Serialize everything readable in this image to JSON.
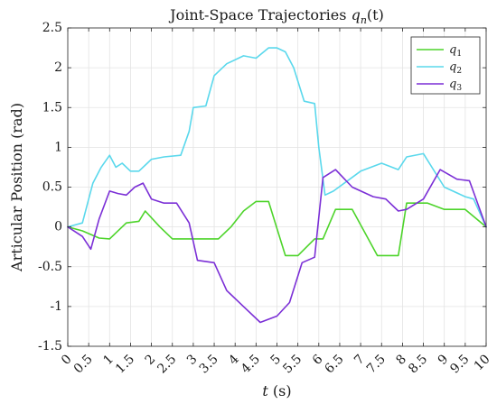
{
  "chart_data": {
    "type": "line",
    "title": "Joint-Space Trajectories q_n(t)",
    "title_parts": {
      "text": "Joint-Space Trajectories ",
      "symbol": "q",
      "subscript": "n",
      "suffix": "(t)"
    },
    "xlabel": "t (s)",
    "xlabel_parts": {
      "symbol": "t",
      "suffix": " (s)"
    },
    "ylabel": "Articular Position (rad)",
    "xlim": [
      0,
      10
    ],
    "ylim": [
      -1.5,
      2.5
    ],
    "grid": true,
    "legend_position": "top-right",
    "x_ticks": [
      "0",
      "0.5",
      "1",
      "1.5",
      "2",
      "2.5",
      "3",
      "3.5",
      "4",
      "4.5",
      "5",
      "5.5",
      "6",
      "6.5",
      "7",
      "7.5",
      "8",
      "8.5",
      "9",
      "9.5",
      "10"
    ],
    "y_ticks": [
      "2.5",
      "2",
      "1.5",
      "1",
      "0.5",
      "0",
      "-0.5",
      "-1",
      "-1.5"
    ],
    "series": [
      {
        "name": "q1",
        "legend_symbol": "q",
        "legend_subscript": "1",
        "color": "#4dd42a",
        "x": [
          0,
          0.35,
          0.75,
          1.0,
          1.4,
          1.7,
          1.85,
          2.2,
          2.5,
          2.9,
          3.3,
          3.6,
          3.9,
          4.2,
          4.5,
          4.8,
          5.2,
          5.5,
          5.9,
          6.1,
          6.4,
          6.8,
          7.4,
          7.7,
          7.9,
          8.1,
          8.6,
          9.0,
          9.5,
          10.0
        ],
        "y": [
          0.0,
          -0.05,
          -0.14,
          -0.15,
          0.05,
          0.07,
          0.2,
          0.0,
          -0.15,
          -0.15,
          -0.15,
          -0.15,
          0.0,
          0.2,
          0.32,
          0.32,
          -0.36,
          -0.36,
          -0.15,
          -0.15,
          0.22,
          0.22,
          -0.36,
          -0.36,
          -0.36,
          0.3,
          0.3,
          0.22,
          0.22,
          0.0
        ]
      },
      {
        "name": "q2",
        "legend_symbol": "q",
        "legend_subscript": "2",
        "color": "#5ad8ec",
        "x": [
          0,
          0.35,
          0.6,
          0.8,
          1.0,
          1.15,
          1.3,
          1.5,
          1.7,
          1.9,
          2.0,
          2.3,
          2.7,
          2.9,
          3.0,
          3.3,
          3.5,
          3.8,
          4.2,
          4.5,
          4.8,
          5.0,
          5.2,
          5.4,
          5.65,
          5.9,
          6.0,
          6.15,
          6.35,
          7.0,
          7.5,
          7.9,
          8.1,
          8.5,
          9.0,
          9.5,
          9.7,
          10.0
        ],
        "y": [
          0.0,
          0.05,
          0.55,
          0.75,
          0.9,
          0.75,
          0.8,
          0.7,
          0.7,
          0.8,
          0.85,
          0.88,
          0.9,
          1.2,
          1.5,
          1.52,
          1.9,
          2.05,
          2.15,
          2.12,
          2.25,
          2.25,
          2.2,
          2.0,
          1.58,
          1.55,
          1.0,
          0.4,
          0.45,
          0.7,
          0.8,
          0.72,
          0.88,
          0.92,
          0.5,
          0.38,
          0.35,
          0.0
        ]
      },
      {
        "name": "q3",
        "legend_symbol": "q",
        "legend_subscript": "3",
        "color": "#7b2fd6",
        "x": [
          0,
          0.35,
          0.55,
          0.75,
          1.0,
          1.2,
          1.4,
          1.6,
          1.8,
          2.0,
          2.3,
          2.6,
          2.9,
          3.1,
          3.5,
          3.8,
          4.2,
          4.6,
          5.0,
          5.3,
          5.6,
          5.9,
          6.1,
          6.4,
          6.8,
          7.3,
          7.6,
          7.9,
          8.1,
          8.5,
          8.9,
          9.3,
          9.6,
          10.0
        ],
        "y": [
          0.0,
          -0.12,
          -0.28,
          0.1,
          0.45,
          0.42,
          0.4,
          0.5,
          0.55,
          0.35,
          0.3,
          0.3,
          0.05,
          -0.42,
          -0.45,
          -0.8,
          -1.0,
          -1.2,
          -1.12,
          -0.95,
          -0.45,
          -0.38,
          0.62,
          0.72,
          0.5,
          0.38,
          0.35,
          0.2,
          0.22,
          0.35,
          0.72,
          0.6,
          0.58,
          0.0
        ]
      }
    ]
  }
}
